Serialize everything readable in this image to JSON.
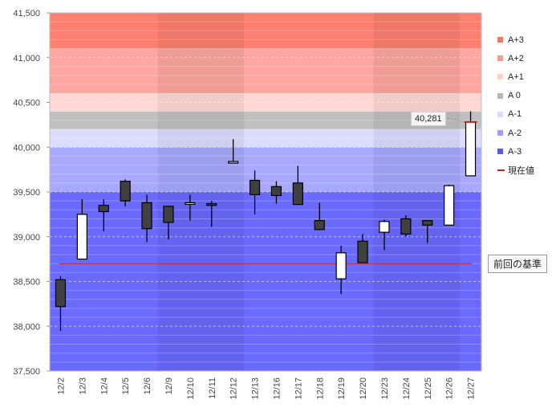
{
  "chart_data": {
    "type": "candlestick",
    "categories": [
      "12/2",
      "12/3",
      "12/4",
      "12/5",
      "12/6",
      "12/9",
      "12/10",
      "12/11",
      "12/12",
      "12/13",
      "12/16",
      "12/17",
      "12/18",
      "12/19",
      "12/20",
      "12/23",
      "12/24",
      "12/25",
      "12/26",
      "12/27"
    ],
    "ohlc": [
      [
        38520,
        38560,
        37950,
        38220
      ],
      [
        38750,
        39420,
        38750,
        39250
      ],
      [
        39350,
        39420,
        39060,
        39280
      ],
      [
        39620,
        39640,
        39340,
        39400
      ],
      [
        39380,
        39470,
        38940,
        39090
      ],
      [
        39340,
        39340,
        38970,
        39160
      ],
      [
        39370,
        39470,
        39180,
        39380
      ],
      [
        39370,
        39400,
        39110,
        39350
      ],
      [
        39840,
        40090,
        39840,
        39840
      ],
      [
        39630,
        39740,
        39250,
        39470
      ],
      [
        39560,
        39620,
        39370,
        39460
      ],
      [
        39600,
        39790,
        39360,
        39360
      ],
      [
        39180,
        39380,
        39080,
        39080
      ],
      [
        38530,
        38900,
        38360,
        38820
      ],
      [
        38950,
        39030,
        38720,
        38710
      ],
      [
        39050,
        39190,
        38850,
        39170
      ],
      [
        39200,
        39240,
        39000,
        39030
      ],
      [
        39180,
        39180,
        38930,
        39130
      ],
      [
        39130,
        39580,
        39130,
        39570
      ],
      [
        39680,
        40400,
        39680,
        40281
      ]
    ],
    "ylim": [
      37500,
      41500
    ],
    "yticks": [
      37500,
      38000,
      38500,
      39000,
      39500,
      40000,
      40500,
      41000,
      41500
    ],
    "ytick_labels": [
      "37,500",
      "38,000",
      "38,500",
      "39,000",
      "39,500",
      "40,000",
      "40,500",
      "41,000",
      "41,500"
    ],
    "reference_price": 38700,
    "reference_label": "前回の基準",
    "current_price_label": "40,281",
    "bands": [
      {
        "name": "A+3",
        "from": 41100,
        "to": 41500,
        "color": "#ff8070"
      },
      {
        "name": "A+2",
        "from": 40600,
        "to": 41100,
        "color": "#ffa6a0"
      },
      {
        "name": "A+1",
        "from": 40400,
        "to": 40600,
        "color": "#ffd8d4"
      },
      {
        "name": "A 0",
        "from": 40200,
        "to": 40400,
        "color": "#c0c0c0"
      },
      {
        "name": "A-1",
        "from": 40000,
        "to": 40200,
        "color": "#dcdcff"
      },
      {
        "name": "A-2",
        "from": 39500,
        "to": 40000,
        "color": "#a8a8ff"
      },
      {
        "name": "A-3",
        "from": 37500,
        "to": 39500,
        "color": "#6a6aff"
      }
    ],
    "shaded_weeks": [
      [
        5,
        8
      ],
      [
        15,
        18
      ]
    ],
    "colors": {
      "up": "#ffffff",
      "down": "#404040",
      "reference_line": "#cc1f1f",
      "current_marker": "#cc1f1f"
    }
  },
  "legend": {
    "items": [
      {
        "label": "A+3",
        "color": "#f0786b"
      },
      {
        "label": "A+2",
        "color": "#f59d94"
      },
      {
        "label": "A+1",
        "color": "#fbd2cd"
      },
      {
        "label": "A 0",
        "color": "#b8b8b8"
      },
      {
        "label": "A-1",
        "color": "#dcdcf8"
      },
      {
        "label": "A-2",
        "color": "#a0a0f0"
      },
      {
        "label": "A-3",
        "color": "#5a5af0"
      }
    ],
    "current_label": "現在値",
    "current_color": "#cc1f1f"
  }
}
